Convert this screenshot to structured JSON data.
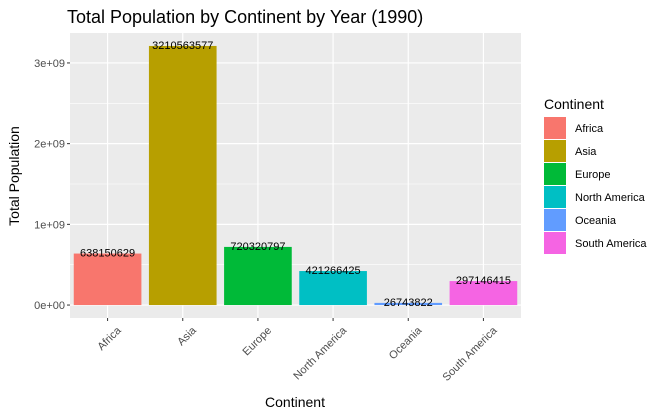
{
  "chart_data": {
    "type": "bar",
    "title": "Total Population by Continent by Year (1990)",
    "xlabel": "Continent",
    "ylabel": "Total Population",
    "categories": [
      "Africa",
      "Asia",
      "Europe",
      "North America",
      "Oceania",
      "South America"
    ],
    "values": [
      638150629,
      3210563577,
      720320797,
      421266425,
      26743822,
      297146415
    ],
    "value_labels": [
      "638150629",
      "3210563577",
      "720320797",
      "421266425",
      "26743822",
      "297146415"
    ],
    "colors": [
      "#F8766D",
      "#B79F00",
      "#00BA38",
      "#00BFC4",
      "#619CFF",
      "#F564E3"
    ],
    "yticks": [
      0,
      1000000000,
      2000000000,
      3000000000
    ],
    "ytick_labels": [
      "0e+00",
      "1e+09",
      "2e+09",
      "3e+09"
    ],
    "ylim": [
      -160528179,
      3371091756
    ],
    "grid": true,
    "panel_background": "#EBEBEB",
    "legend": {
      "title": "Continent",
      "position": "right",
      "entries": [
        "Africa",
        "Asia",
        "Europe",
        "North America",
        "Oceania",
        "South America"
      ]
    }
  }
}
